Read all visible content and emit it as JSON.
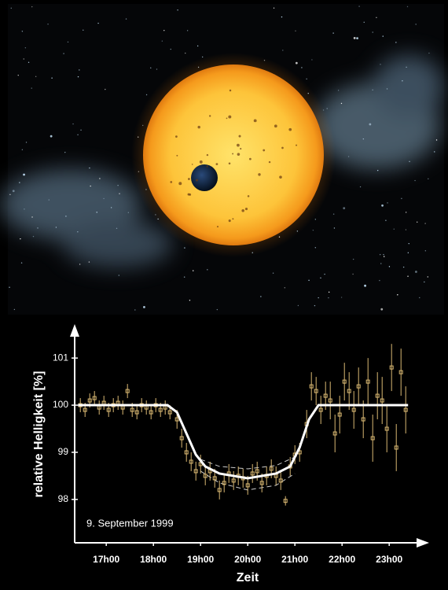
{
  "chart_data": {
    "type": "scatter",
    "x_label": "Zeit",
    "y_label": "relative Helligkeit [%]",
    "annotation": "9. September 1999",
    "xlim": [
      16.33,
      23.83
    ],
    "ylim": [
      97.08,
      101.67
    ],
    "xticks": [
      {
        "value": 17,
        "label": "17h00"
      },
      {
        "value": 18,
        "label": "18h00"
      },
      {
        "value": 19,
        "label": "19h00"
      },
      {
        "value": 20,
        "label": "20h00"
      },
      {
        "value": 21,
        "label": "21h00"
      },
      {
        "value": 22,
        "label": "22h00"
      },
      {
        "value": 23,
        "label": "23h00"
      }
    ],
    "yticks": [
      98,
      99,
      100,
      101
    ],
    "points": {
      "color": "#d9b872",
      "x": [
        16.45,
        16.55,
        16.65,
        16.75,
        16.85,
        16.95,
        17.05,
        17.15,
        17.25,
        17.35,
        17.45,
        17.55,
        17.65,
        17.75,
        17.85,
        17.95,
        18.05,
        18.15,
        18.25,
        18.35,
        18.5,
        18.6,
        18.7,
        18.8,
        18.9,
        19.0,
        19.1,
        19.2,
        19.3,
        19.4,
        19.5,
        19.6,
        19.7,
        19.8,
        19.9,
        20.0,
        20.1,
        20.2,
        20.3,
        20.4,
        20.5,
        20.6,
        20.7,
        20.8,
        20.9,
        21.0,
        21.1,
        21.25,
        21.35,
        21.45,
        21.55,
        21.65,
        21.75,
        21.85,
        21.95,
        22.05,
        22.15,
        22.25,
        22.35,
        22.45,
        22.55,
        22.65,
        22.75,
        22.85,
        22.95,
        23.05,
        23.15,
        23.25,
        23.35
      ],
      "y": [
        100.0,
        99.9,
        100.1,
        100.15,
        99.95,
        100.05,
        99.9,
        100.0,
        100.05,
        99.95,
        100.3,
        99.9,
        99.85,
        100.0,
        99.95,
        99.85,
        100.0,
        99.9,
        99.95,
        99.85,
        99.7,
        99.3,
        99.0,
        98.8,
        98.6,
        98.75,
        98.5,
        98.6,
        98.45,
        98.2,
        98.35,
        98.55,
        98.4,
        98.5,
        98.45,
        98.3,
        98.55,
        98.6,
        98.35,
        98.5,
        98.65,
        98.5,
        98.4,
        97.97,
        98.7,
        98.95,
        99.0,
        99.6,
        100.4,
        100.3,
        99.9,
        100.2,
        100.1,
        99.4,
        99.8,
        100.5,
        100.3,
        99.9,
        100.4,
        99.7,
        100.5,
        99.3,
        100.2,
        100.1,
        99.5,
        100.8,
        99.1,
        100.7,
        99.9
      ],
      "err": [
        0.15,
        0.15,
        0.15,
        0.15,
        0.15,
        0.15,
        0.15,
        0.15,
        0.15,
        0.15,
        0.15,
        0.15,
        0.15,
        0.15,
        0.15,
        0.15,
        0.15,
        0.15,
        0.15,
        0.15,
        0.2,
        0.2,
        0.2,
        0.2,
        0.2,
        0.2,
        0.2,
        0.2,
        0.2,
        0.2,
        0.2,
        0.2,
        0.2,
        0.2,
        0.2,
        0.2,
        0.2,
        0.2,
        0.2,
        0.2,
        0.2,
        0.2,
        0.2,
        0.1,
        0.2,
        0.2,
        0.2,
        0.3,
        0.3,
        0.3,
        0.3,
        0.3,
        0.4,
        0.4,
        0.4,
        0.4,
        0.4,
        0.4,
        0.4,
        0.4,
        0.5,
        0.5,
        0.5,
        0.5,
        0.5,
        0.5,
        0.5,
        0.5,
        0.5
      ]
    },
    "fit": {
      "color": "#ffffff",
      "x": [
        16.4,
        18.3,
        18.5,
        18.7,
        18.9,
        19.1,
        19.4,
        20.0,
        20.6,
        20.9,
        21.1,
        21.3,
        21.5,
        23.4
      ],
      "y": [
        100,
        100,
        99.85,
        99.4,
        98.95,
        98.7,
        98.55,
        98.45,
        98.55,
        98.7,
        99.1,
        99.7,
        100,
        100
      ]
    },
    "fit_bounds": [
      {
        "color": "#cccccc",
        "x": [
          19.0,
          19.4,
          20.0,
          20.6,
          21.0
        ],
        "y": [
          98.6,
          98.35,
          98.2,
          98.3,
          98.55
        ]
      },
      {
        "color": "#cccccc",
        "x": [
          19.0,
          19.4,
          20.0,
          20.6,
          21.0
        ],
        "y": [
          98.85,
          98.7,
          98.65,
          98.72,
          98.9
        ]
      }
    ]
  }
}
